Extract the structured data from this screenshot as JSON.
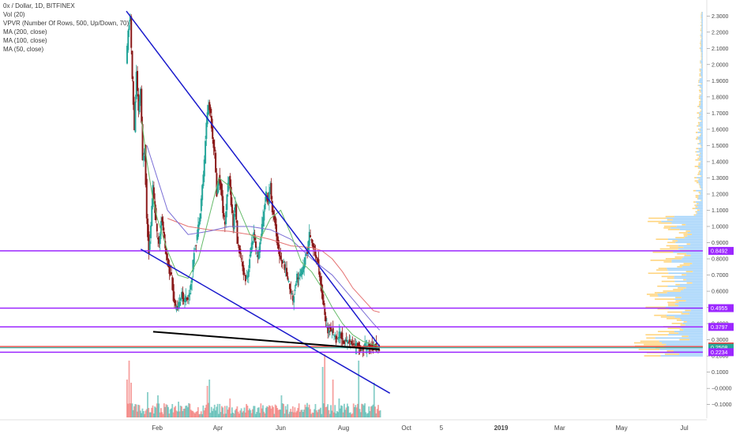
{
  "legend": {
    "title": "0x / Dollar, 1D, BITFINEX",
    "indicators": [
      "Vol (20)",
      "VPVR (Number Of Rows, 500, Up/Down, 70)",
      "MA (200, close)",
      "MA (100, close)",
      "MA (50, close)"
    ]
  },
  "colors": {
    "up": "#26a69a",
    "down": "#ef5350",
    "candle_body": "#8b1a1a",
    "trendline": "#1a1acc",
    "support": "#000000",
    "purple": "#9c27ff",
    "red_level": "#e53935",
    "ma200": "#e57373",
    "ma100": "#7b6fd6",
    "ma50": "#66bb6a",
    "vpvr_up": "#90caf9",
    "vpvr_down": "#ffcc66",
    "axis_text": "#444444"
  },
  "chart_data": {
    "type": "candlestick",
    "symbol": "0x / Dollar",
    "interval": "1D",
    "exchange": "BITFINEX",
    "ylim": [
      -0.16,
      2.35
    ],
    "y_ticks": [
      2.3,
      2.2,
      2.1,
      2.0,
      1.9,
      1.8,
      1.7,
      1.6,
      1.5,
      1.4,
      1.3,
      1.2,
      1.1,
      1.0,
      0.9,
      0.8,
      0.7,
      0.6,
      0.5,
      0.4,
      0.3,
      0.2,
      0.1,
      0.0,
      -0.1
    ],
    "y_tick_labels": [
      "2.3000",
      "2.2000",
      "2.1000",
      "2.0000",
      "1.9000",
      "1.8000",
      "1.7000",
      "1.6000",
      "1.5000",
      "1.4000",
      "1.3000",
      "1.2000",
      "1.1000",
      "1.0000",
      "0.9000",
      "0.8000",
      "0.7000",
      "0.6000",
      "0.5000",
      "0.4000",
      "0.3000",
      "0.2000",
      "0.1000",
      "−0.0000",
      "−0.1000"
    ],
    "x_ticks": [
      {
        "label": "Feb",
        "x": 30,
        "bold": false
      },
      {
        "label": "Apr",
        "x": 89,
        "bold": false
      },
      {
        "label": "Jun",
        "x": 150,
        "bold": false
      },
      {
        "label": "Aug",
        "x": 211,
        "bold": false
      },
      {
        "label": "Oct",
        "x": 272,
        "bold": false
      },
      {
        "label": "5",
        "x": 306,
        "bold": false
      },
      {
        "label": "2019",
        "x": 364,
        "bold": true
      },
      {
        "label": "Mar",
        "x": 421,
        "bold": false
      },
      {
        "label": "May",
        "x": 481,
        "bold": false
      },
      {
        "label": "Jul",
        "x": 542,
        "bold": false
      }
    ],
    "price_levels": [
      {
        "label": "0.8492",
        "value": 0.8492,
        "color": "#9c27ff"
      },
      {
        "label": "0.4955",
        "value": 0.4955,
        "color": "#9c27ff"
      },
      {
        "label": "0.3797",
        "value": 0.3797,
        "color": "#9c27ff"
      },
      {
        "label": "0.2584",
        "value": 0.2584,
        "color": "#e53935"
      },
      {
        "label": "0.2508",
        "value": 0.2508,
        "color": "#26a69a"
      },
      {
        "label": "0.2234",
        "value": 0.2234,
        "color": "#9c27ff"
      }
    ],
    "price_path": [
      [
        0,
        2.0
      ],
      [
        2,
        2.2
      ],
      [
        4,
        2.3
      ],
      [
        6,
        1.9
      ],
      [
        8,
        1.6
      ],
      [
        10,
        1.95
      ],
      [
        12,
        1.7
      ],
      [
        14,
        1.85
      ],
      [
        16,
        1.4
      ],
      [
        18,
        1.5
      ],
      [
        20,
        1.05
      ],
      [
        22,
        0.85
      ],
      [
        24,
        1.0
      ],
      [
        26,
        1.25
      ],
      [
        28,
        1.1
      ],
      [
        30,
        0.95
      ],
      [
        32,
        0.9
      ],
      [
        34,
        1.05
      ],
      [
        36,
        0.98
      ],
      [
        38,
        0.85
      ],
      [
        40,
        0.8
      ],
      [
        42,
        0.72
      ],
      [
        44,
        0.7
      ],
      [
        46,
        0.55
      ],
      [
        48,
        0.5
      ],
      [
        50,
        0.48
      ],
      [
        52,
        0.55
      ],
      [
        54,
        0.6
      ],
      [
        56,
        0.52
      ],
      [
        58,
        0.58
      ],
      [
        60,
        0.55
      ],
      [
        62,
        0.6
      ],
      [
        64,
        0.7
      ],
      [
        66,
        0.85
      ],
      [
        68,
        0.9
      ],
      [
        70,
        1.0
      ],
      [
        72,
        1.1
      ],
      [
        74,
        1.25
      ],
      [
        76,
        1.4
      ],
      [
        78,
        1.65
      ],
      [
        80,
        1.75
      ],
      [
        82,
        1.7
      ],
      [
        84,
        1.55
      ],
      [
        86,
        1.45
      ],
      [
        88,
        1.2
      ],
      [
        90,
        1.3
      ],
      [
        92,
        1.25
      ],
      [
        94,
        1.1
      ],
      [
        96,
        1.0
      ],
      [
        98,
        1.2
      ],
      [
        100,
        1.3
      ],
      [
        102,
        1.15
      ],
      [
        104,
        1.0
      ],
      [
        106,
        1.15
      ],
      [
        108,
        0.9
      ],
      [
        110,
        0.85
      ],
      [
        112,
        0.78
      ],
      [
        114,
        0.72
      ],
      [
        116,
        0.68
      ],
      [
        118,
        0.7
      ],
      [
        120,
        0.8
      ],
      [
        122,
        0.9
      ],
      [
        124,
        0.95
      ],
      [
        126,
        0.85
      ],
      [
        128,
        0.8
      ],
      [
        130,
        0.9
      ],
      [
        132,
        1.0
      ],
      [
        134,
        1.1
      ],
      [
        136,
        1.2
      ],
      [
        138,
        1.15
      ],
      [
        140,
        1.25
      ],
      [
        142,
        1.1
      ],
      [
        144,
        1.05
      ],
      [
        146,
        0.95
      ],
      [
        148,
        0.85
      ],
      [
        150,
        0.8
      ],
      [
        152,
        0.78
      ],
      [
        154,
        0.75
      ],
      [
        156,
        0.7
      ],
      [
        158,
        0.65
      ],
      [
        160,
        0.6
      ],
      [
        162,
        0.55
      ],
      [
        164,
        0.62
      ],
      [
        166,
        0.7
      ],
      [
        168,
        0.68
      ],
      [
        170,
        0.72
      ],
      [
        172,
        0.74
      ],
      [
        174,
        0.8
      ],
      [
        176,
        0.85
      ],
      [
        178,
        0.95
      ],
      [
        180,
        0.9
      ],
      [
        182,
        0.88
      ],
      [
        184,
        0.82
      ],
      [
        186,
        0.78
      ],
      [
        188,
        0.7
      ],
      [
        190,
        0.6
      ],
      [
        192,
        0.5
      ],
      [
        194,
        0.4
      ],
      [
        196,
        0.35
      ],
      [
        198,
        0.38
      ],
      [
        200,
        0.36
      ],
      [
        202,
        0.33
      ],
      [
        204,
        0.3
      ],
      [
        206,
        0.32
      ],
      [
        208,
        0.35
      ],
      [
        210,
        0.3
      ],
      [
        212,
        0.28
      ],
      [
        214,
        0.3
      ],
      [
        216,
        0.29
      ],
      [
        218,
        0.28
      ],
      [
        220,
        0.27
      ],
      [
        222,
        0.26
      ],
      [
        224,
        0.27
      ],
      [
        226,
        0.26
      ],
      [
        228,
        0.25
      ],
      [
        230,
        0.24
      ],
      [
        232,
        0.26
      ],
      [
        234,
        0.25
      ],
      [
        236,
        0.27
      ],
      [
        238,
        0.26
      ],
      [
        240,
        0.25
      ],
      [
        242,
        0.26
      ],
      [
        244,
        0.24
      ],
      [
        246,
        0.25
      ]
    ],
    "ma_series": {
      "ma200": [
        [
          40,
          1.05
        ],
        [
          60,
          1.0
        ],
        [
          80,
          0.98
        ],
        [
          100,
          0.97
        ],
        [
          120,
          0.95
        ],
        [
          140,
          0.92
        ],
        [
          160,
          0.88
        ],
        [
          180,
          0.87
        ],
        [
          190,
          0.85
        ],
        [
          200,
          0.8
        ],
        [
          210,
          0.72
        ],
        [
          220,
          0.62
        ],
        [
          230,
          0.55
        ],
        [
          240,
          0.48
        ],
        [
          246,
          0.47
        ]
      ],
      "ma100": [
        [
          20,
          1.5
        ],
        [
          30,
          1.3
        ],
        [
          40,
          1.1
        ],
        [
          60,
          0.95
        ],
        [
          80,
          0.97
        ],
        [
          100,
          1.0
        ],
        [
          120,
          1.0
        ],
        [
          140,
          0.98
        ],
        [
          160,
          0.92
        ],
        [
          180,
          0.8
        ],
        [
          200,
          0.7
        ],
        [
          220,
          0.55
        ],
        [
          240,
          0.4
        ],
        [
          246,
          0.36
        ]
      ],
      "ma50": [
        [
          15,
          1.65
        ],
        [
          20,
          1.4
        ],
        [
          25,
          1.2
        ],
        [
          30,
          1.05
        ],
        [
          40,
          0.85
        ],
        [
          50,
          0.7
        ],
        [
          60,
          0.68
        ],
        [
          70,
          0.8
        ],
        [
          80,
          1.05
        ],
        [
          90,
          1.3
        ],
        [
          100,
          1.25
        ],
        [
          110,
          1.1
        ],
        [
          120,
          0.95
        ],
        [
          130,
          0.92
        ],
        [
          140,
          1.05
        ],
        [
          150,
          1.1
        ],
        [
          160,
          0.95
        ],
        [
          170,
          0.78
        ],
        [
          180,
          0.72
        ],
        [
          190,
          0.62
        ],
        [
          200,
          0.5
        ],
        [
          210,
          0.4
        ],
        [
          220,
          0.33
        ],
        [
          230,
          0.29
        ],
        [
          240,
          0.27
        ],
        [
          246,
          0.26
        ]
      ]
    },
    "volume_spikes": [
      [
        0,
        0.6
      ],
      [
        2,
        0.9
      ],
      [
        4,
        0.55
      ],
      [
        20,
        0.4
      ],
      [
        30,
        0.35
      ],
      [
        50,
        0.25
      ],
      [
        78,
        0.5
      ],
      [
        80,
        0.6
      ],
      [
        100,
        0.3
      ],
      [
        150,
        0.35
      ],
      [
        190,
        0.8
      ],
      [
        192,
        1.0
      ],
      [
        200,
        0.6
      ],
      [
        206,
        0.3
      ],
      [
        225,
        0.9
      ],
      [
        240,
        0.55
      ]
    ],
    "trendlines": [
      {
        "name": "upper-descending",
        "from": {
          "x": 0,
          "y": 2.33
        },
        "to": {
          "x": 246,
          "y": 0.26
        }
      },
      {
        "name": "lower-descending",
        "from": {
          "x": 14,
          "y": 0.86
        },
        "to": {
          "x": 256,
          "y": -0.03
        }
      },
      {
        "name": "support",
        "from": {
          "x": 26,
          "y": 0.35
        },
        "to": {
          "x": 246,
          "y": 0.24
        }
      }
    ]
  }
}
